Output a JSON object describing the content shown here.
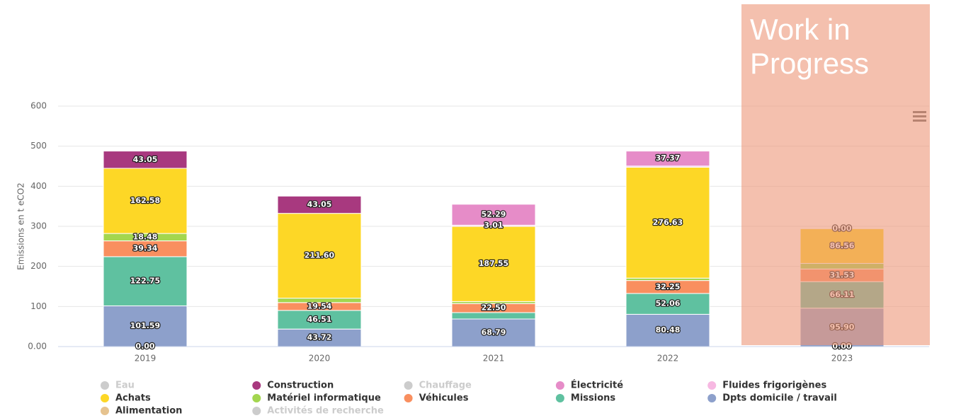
{
  "chart_data": {
    "type": "stacked_bar",
    "y_label": "Emissions en t eCO2",
    "annotation": "Work in Progress",
    "categories": [
      "2019",
      "2020",
      "2021",
      "2022",
      "2023"
    ],
    "ylim": [
      0,
      600
    ],
    "yticks": [
      {
        "value": 0,
        "label": "0.00"
      },
      100,
      200,
      300,
      400,
      500,
      600
    ],
    "grid": true,
    "series": [
      {
        "name": "Eau",
        "color": "#cccccc",
        "visible": false,
        "values": [
          null,
          null,
          null,
          null,
          null
        ]
      },
      {
        "name": "Construction",
        "color": "#a8397f",
        "visible": true,
        "values": [
          43.05,
          43.05,
          null,
          null,
          null
        ],
        "value_labels": [
          "43.05",
          "43.05",
          null,
          null,
          null
        ]
      },
      {
        "name": "Chauffage",
        "color": "#cccccc",
        "visible": false,
        "values": [
          null,
          null,
          null,
          null,
          null
        ]
      },
      {
        "name": "Électricité",
        "color": "#e68cc8",
        "visible": true,
        "values": [
          null,
          null,
          52.29,
          37.37,
          null
        ],
        "value_labels": [
          null,
          null,
          "52.29",
          "37.37",
          null
        ]
      },
      {
        "name": "Fluides frigorigènes",
        "color": "#f7b8e2",
        "visible": true,
        "values": [
          null,
          null,
          3.01,
          3,
          0
        ],
        "value_labels": [
          null,
          null,
          "3.01",
          null,
          "0.00"
        ]
      },
      {
        "name": "Achats",
        "color": "#fdd726",
        "visible": true,
        "values": [
          162.58,
          211.6,
          187.55,
          276.63,
          86.56
        ],
        "value_labels": [
          "162.58",
          "211.60",
          "187.55",
          "276.63",
          "86.56"
        ]
      },
      {
        "name": "Matériel informatique",
        "color": "#a3d64f",
        "visible": true,
        "values": [
          18.48,
          11,
          5,
          6,
          14
        ],
        "value_labels": [
          "18.48",
          null,
          null,
          null,
          null
        ]
      },
      {
        "name": "Véhicules",
        "color": "#f98f5f",
        "visible": true,
        "values": [
          39.34,
          19.54,
          22.5,
          32.25,
          31.53
        ],
        "value_labels": [
          "39.34",
          "19.54",
          "22.50",
          "32.25",
          "31.53"
        ]
      },
      {
        "name": "Missions",
        "color": "#5fc1a0",
        "visible": true,
        "values": [
          122.75,
          46.51,
          16,
          52.06,
          66.11
        ],
        "value_labels": [
          "122.75",
          "46.51",
          null,
          "52.06",
          "66.11"
        ]
      },
      {
        "name": "Dpts domicile / travail",
        "color": "#8da0cb",
        "visible": true,
        "values": [
          101.59,
          43.72,
          68.79,
          80.48,
          95.9
        ],
        "value_labels": [
          "101.59",
          "43.72",
          "68.79",
          "80.48",
          "95.90"
        ]
      },
      {
        "name": "Alimentation",
        "color": "#e6c38f",
        "visible": true,
        "values": [
          0,
          null,
          null,
          null,
          0
        ],
        "value_labels": [
          "0.00",
          null,
          null,
          null,
          "0.00"
        ]
      },
      {
        "name": "Activités de recherche",
        "color": "#cccccc",
        "visible": false,
        "values": [
          null,
          null,
          null,
          null,
          null
        ]
      }
    ]
  }
}
